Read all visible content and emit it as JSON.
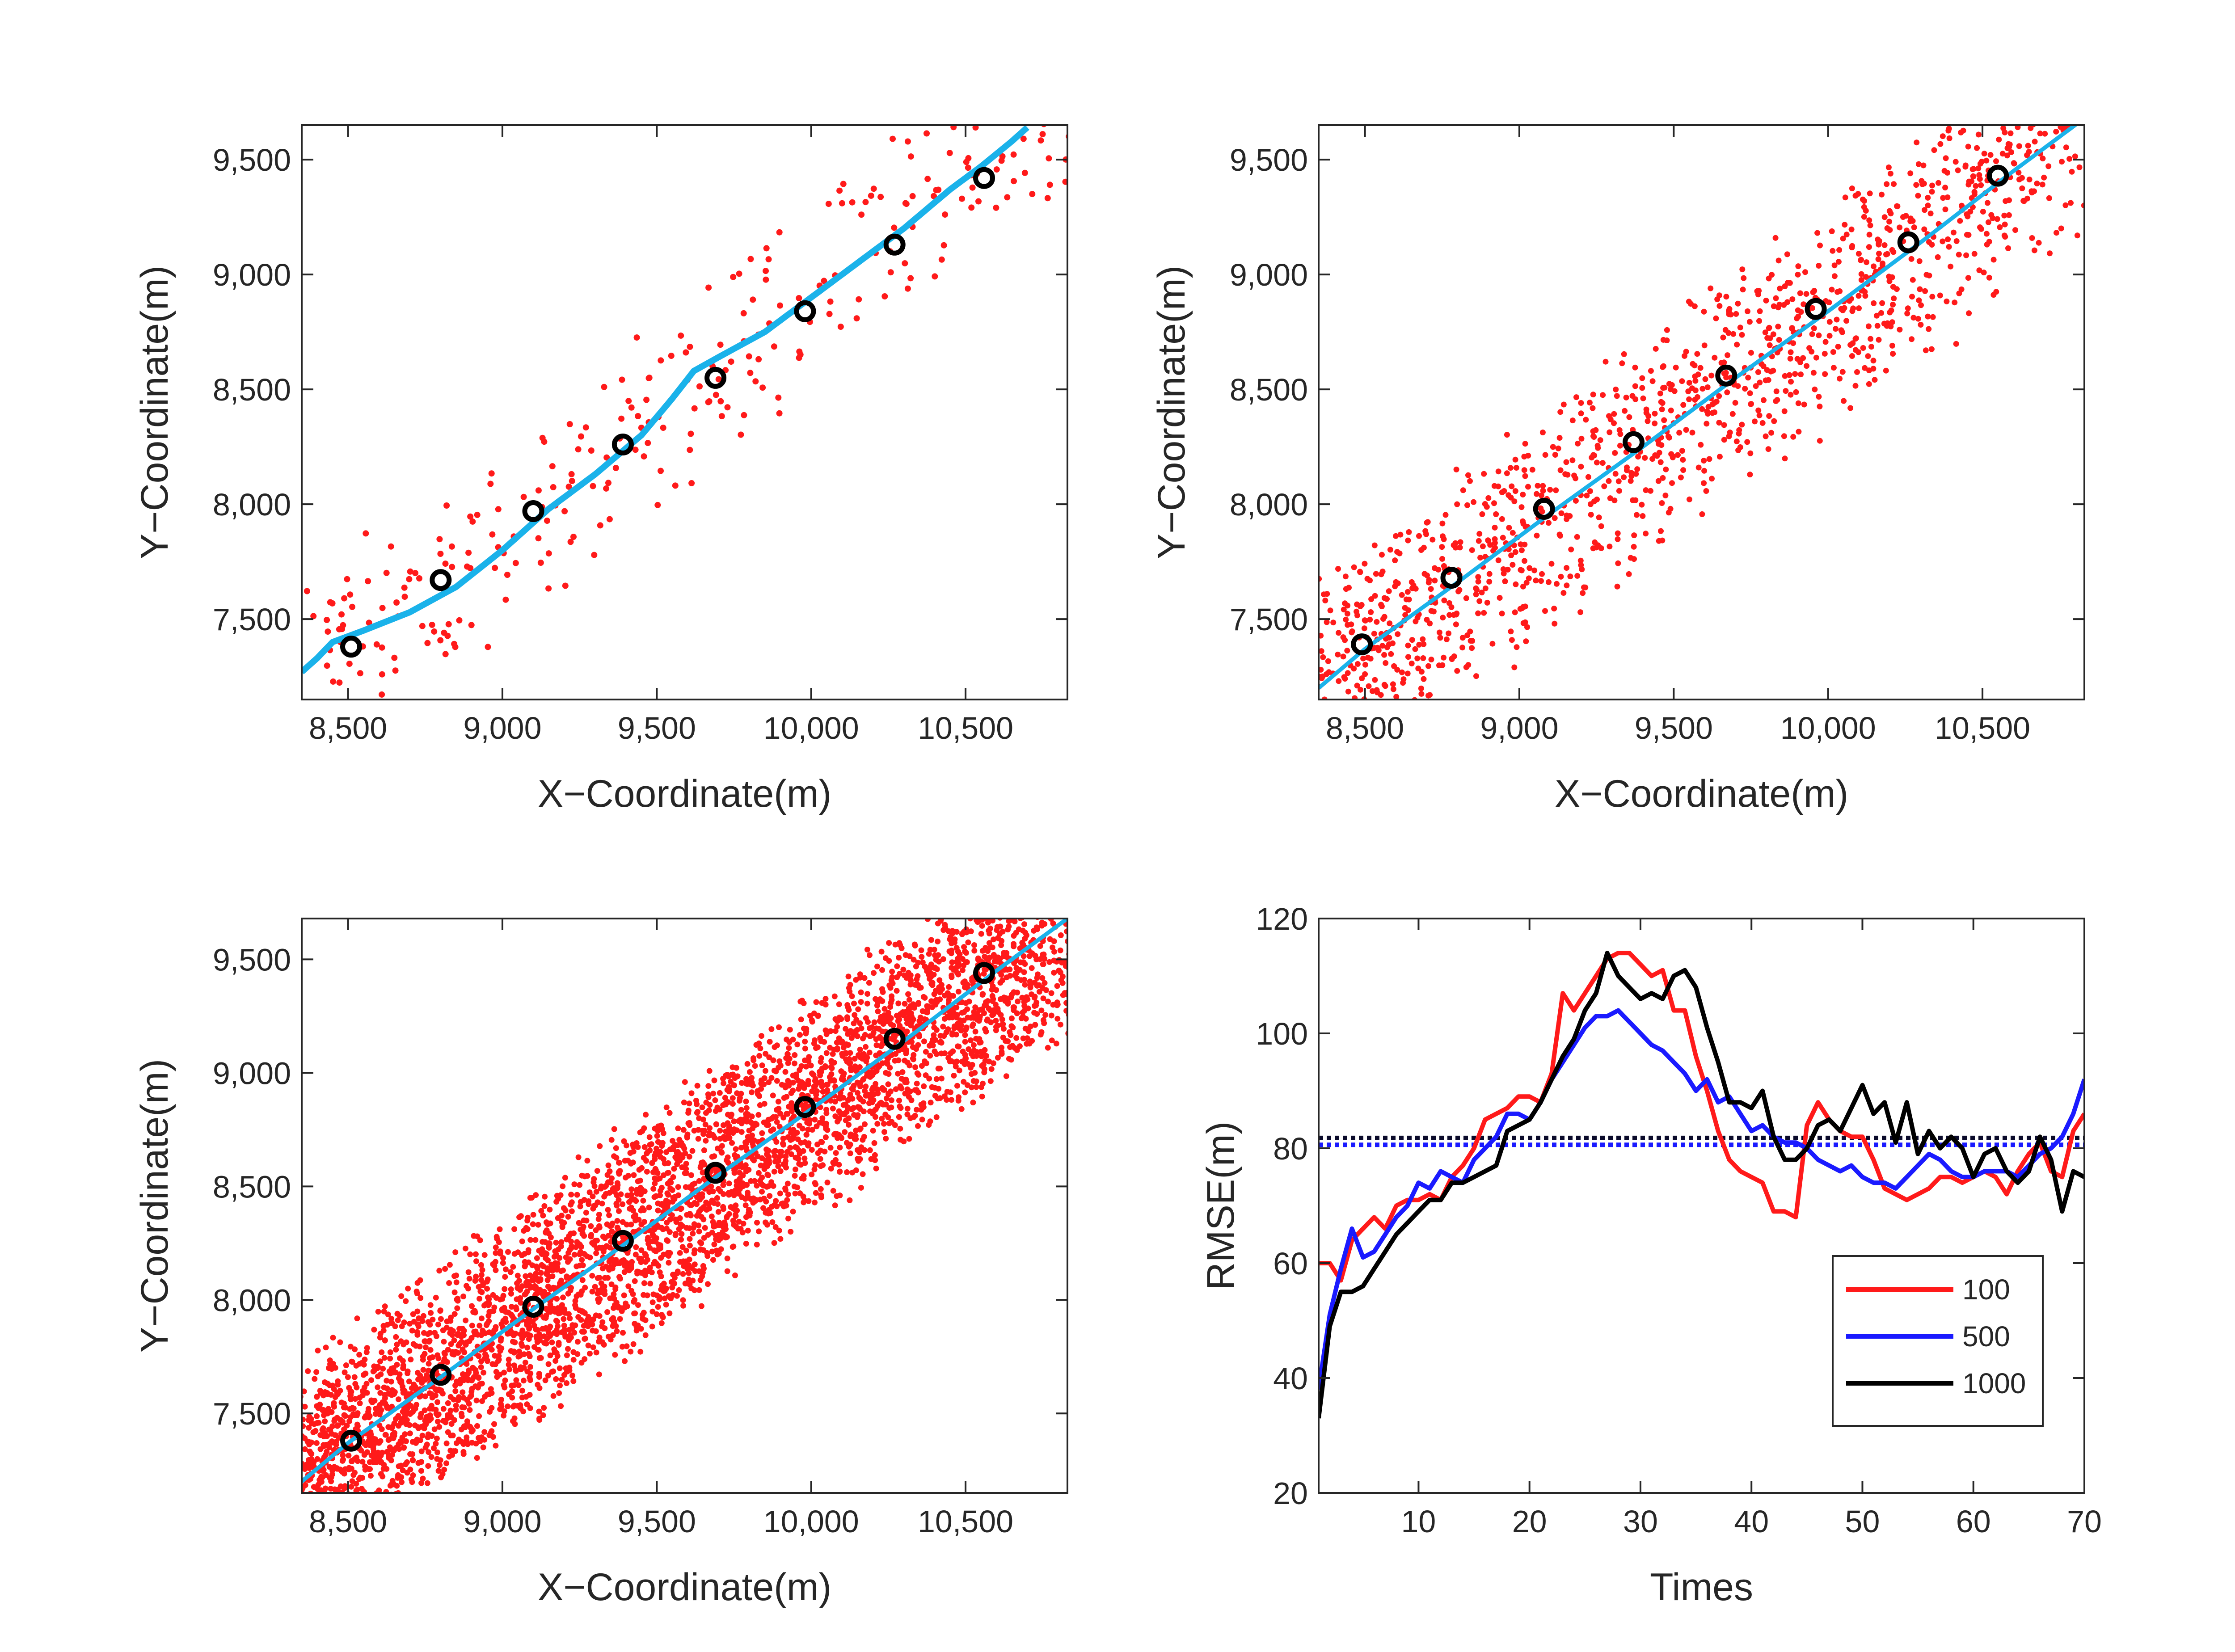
{
  "colors": {
    "scatter": "#ff1a1a",
    "track": "#1ab2ea",
    "marker": "#000000",
    "series_100": "#ff1a1a",
    "series_500": "#1a1aff",
    "series_1000": "#000000",
    "reference": "#0a0a2a"
  },
  "chart_data": [
    {
      "type": "scatter",
      "xlabel": "X−Coordinate(m)",
      "ylabel": "Y−Coordinate(m)",
      "xlim": [
        8350,
        10830
      ],
      "ylim": [
        7150,
        9650
      ],
      "xticks": [
        8500,
        9000,
        9500,
        10000,
        10500
      ],
      "yticks": [
        7500,
        8000,
        8500,
        9000,
        9500
      ],
      "xtick_labels": [
        "8,500",
        "9,000",
        "9,500",
        "10,000",
        "10,500"
      ],
      "ytick_labels": [
        "7,500",
        "8,000",
        "8,500",
        "9,000",
        "9,500"
      ],
      "grid": false,
      "scatter_count": 300,
      "scatter_spread": 210,
      "scatter_seed": 11,
      "track": {
        "x": [
          8350,
          8400,
          8450,
          8550,
          8700,
          8850,
          9000,
          9150,
          9300,
          9450,
          9550,
          9620,
          9700,
          9850,
          10000,
          10150,
          10300,
          10450,
          10550,
          10650,
          10700
        ],
        "y": [
          7270,
          7330,
          7400,
          7450,
          7530,
          7640,
          7800,
          7980,
          8130,
          8300,
          8460,
          8580,
          8640,
          8750,
          8900,
          9050,
          9200,
          9370,
          9470,
          9580,
          9640
        ]
      },
      "markers": {
        "x": [
          8510,
          8800,
          9100,
          9390,
          9690,
          9980,
          10270,
          10560
        ],
        "y": [
          7380,
          7670,
          7970,
          8260,
          8550,
          8840,
          9130,
          9420
        ]
      }
    },
    {
      "type": "scatter",
      "xlabel": "X−Coordinate(m)",
      "ylabel": "Y−Coordinate(m)",
      "xlim": [
        8350,
        10830
      ],
      "ylim": [
        7150,
        9650
      ],
      "xticks": [
        8500,
        9000,
        9500,
        10000,
        10500
      ],
      "yticks": [
        7500,
        8000,
        8500,
        9000,
        9500
      ],
      "xtick_labels": [
        "8,500",
        "9,000",
        "9,500",
        "10,000",
        "10,500"
      ],
      "ytick_labels": [
        "7,500",
        "8,000",
        "8,500",
        "9,000",
        "9,500"
      ],
      "grid": false,
      "scatter_count": 1400,
      "scatter_spread": 230,
      "scatter_seed": 23,
      "track": {
        "x": [
          8350,
          8500,
          8800,
          9100,
          9400,
          9700,
          10000,
          10300,
          10600,
          10830
        ],
        "y": [
          7200,
          7370,
          7660,
          7960,
          8250,
          8550,
          8840,
          9140,
          9450,
          9680
        ]
      },
      "markers": {
        "x": [
          8490,
          8780,
          9080,
          9370,
          9670,
          9960,
          10260,
          10550
        ],
        "y": [
          7390,
          7680,
          7980,
          8270,
          8560,
          8850,
          9140,
          9430
        ]
      }
    },
    {
      "type": "scatter",
      "xlabel": "X−Coordinate(m)",
      "ylabel": "Y−Coordinate(m)",
      "xlim": [
        8350,
        10830
      ],
      "ylim": [
        7150,
        9680
      ],
      "xticks": [
        8500,
        9000,
        9500,
        10000,
        10500
      ],
      "yticks": [
        7500,
        8000,
        8500,
        9000,
        9500
      ],
      "xtick_labels": [
        "8,500",
        "9,000",
        "9,500",
        "10,000",
        "10,500"
      ],
      "ytick_labels": [
        "7,500",
        "8,000",
        "8,500",
        "9,000",
        "9,500"
      ],
      "grid": false,
      "scatter_count": 4500,
      "scatter_spread": 230,
      "scatter_seed": 37,
      "track": {
        "x": [
          8350,
          8500,
          8800,
          9100,
          9400,
          9700,
          10000,
          10300,
          10600,
          10830
        ],
        "y": [
          7200,
          7370,
          7660,
          7960,
          8250,
          8550,
          8840,
          9140,
          9450,
          9680
        ]
      },
      "markers": {
        "x": [
          8510,
          8800,
          9100,
          9390,
          9690,
          9980,
          10270,
          10560
        ],
        "y": [
          7380,
          7670,
          7970,
          8260,
          8560,
          8850,
          9150,
          9440
        ]
      }
    },
    {
      "type": "line",
      "xlabel": "Times",
      "ylabel": "RMSE(m)",
      "xlim": [
        1,
        70
      ],
      "ylim": [
        20,
        120
      ],
      "xticks": [
        10,
        20,
        30,
        40,
        50,
        60,
        70
      ],
      "yticks": [
        20,
        40,
        60,
        80,
        100,
        120
      ],
      "xtick_labels": [
        "10",
        "20",
        "30",
        "40",
        "50",
        "60",
        "70"
      ],
      "ytick_labels": [
        "20",
        "40",
        "60",
        "80",
        "100",
        "120"
      ],
      "grid": false,
      "legend_position": "bottom-right",
      "series": [
        {
          "name": "100",
          "color_key": "series_100",
          "values": [
            60,
            60,
            57,
            64,
            66,
            68,
            66,
            70,
            71,
            71,
            72,
            71,
            75,
            77,
            80,
            85,
            86,
            87,
            89,
            89,
            88,
            93,
            107,
            104,
            107,
            110,
            113,
            114,
            114,
            112,
            110,
            111,
            104,
            104,
            96,
            90,
            83,
            78,
            76,
            75,
            74,
            69,
            69,
            68,
            84,
            88,
            85,
            83,
            82,
            82,
            78,
            73,
            72,
            71,
            72,
            73,
            75,
            75,
            74,
            75,
            76,
            75,
            72,
            76,
            79,
            81,
            76,
            75,
            83,
            86
          ]
        },
        {
          "name": "500",
          "color_key": "series_500",
          "values": [
            38,
            51,
            59,
            66,
            61,
            62,
            65,
            68,
            70,
            74,
            73,
            76,
            75,
            74,
            78,
            80,
            82,
            86,
            86,
            85,
            88,
            92,
            95,
            98,
            101,
            103,
            103,
            104,
            102,
            100,
            98,
            97,
            95,
            93,
            90,
            92,
            88,
            89,
            86,
            83,
            84,
            82,
            81,
            81,
            80,
            78,
            77,
            76,
            77,
            75,
            74,
            74,
            73,
            75,
            77,
            79,
            78,
            76,
            75,
            75,
            76,
            76,
            76,
            75,
            77,
            79,
            80,
            82,
            86,
            92
          ]
        },
        {
          "name": "1000",
          "color_key": "series_1000",
          "values": [
            33,
            49,
            55,
            55,
            56,
            59,
            62,
            65,
            67,
            69,
            71,
            71,
            74,
            74,
            75,
            76,
            77,
            83,
            84,
            85,
            88,
            92,
            96,
            99,
            104,
            107,
            114,
            110,
            108,
            106,
            107,
            106,
            110,
            111,
            108,
            101,
            95,
            88,
            88,
            87,
            90,
            82,
            78,
            78,
            80,
            84,
            85,
            83,
            87,
            91,
            86,
            88,
            81,
            88,
            79,
            83,
            80,
            82,
            80,
            75,
            79,
            80,
            76,
            74,
            76,
            82,
            78,
            69,
            76,
            75
          ]
        }
      ],
      "reference_lines": [
        {
          "y": 81.8,
          "color_key": "reference",
          "style": "dotted"
        },
        {
          "y": 80.6,
          "color_key": "series_500",
          "style": "dotted"
        }
      ]
    }
  ]
}
